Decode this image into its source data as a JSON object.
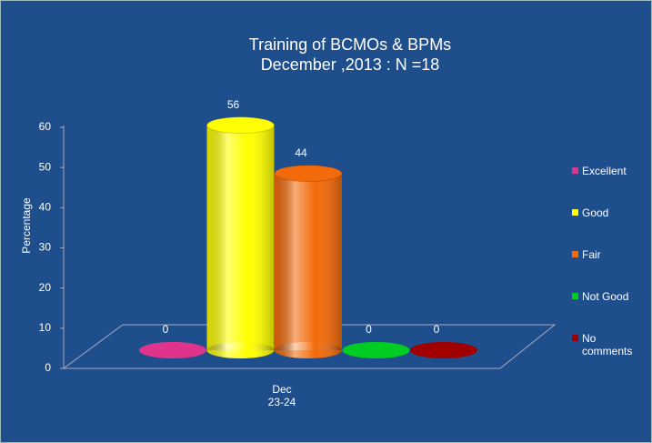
{
  "chart_data": {
    "type": "bar3d",
    "title": "Training of BCMOs & BPMs",
    "subtitle": "December  ,2013 : N =18",
    "y_label": "Percentage",
    "categories": [
      "Dec 23-24"
    ],
    "series": [
      {
        "name": "Excellent",
        "color": "#e0348c",
        "values": [
          0
        ]
      },
      {
        "name": "Good",
        "color": "#ffff00",
        "values": [
          56
        ]
      },
      {
        "name": "Fair",
        "color": "#f26a0a",
        "values": [
          44
        ]
      },
      {
        "name": "Not Good",
        "color": "#00cc22",
        "values": [
          0
        ]
      },
      {
        "name": "No comments",
        "color": "#a00000",
        "values": [
          0
        ]
      }
    ],
    "ylim": [
      0,
      60
    ],
    "yticks": [
      0,
      10,
      20,
      30,
      40,
      50,
      60
    ],
    "legend": "right"
  }
}
